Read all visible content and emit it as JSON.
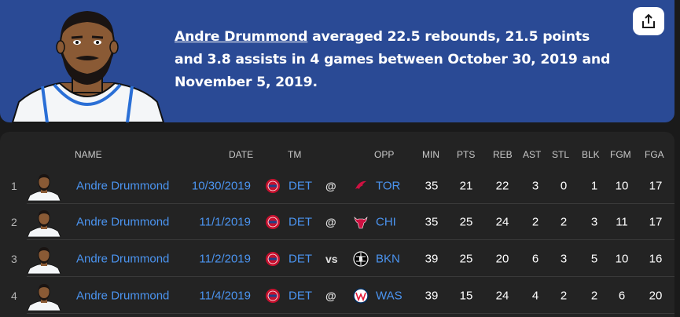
{
  "summary": {
    "player_name": "Andre Drummond",
    "text": " averaged 22.5 rebounds, 21.5 points and 3.8 assists in 4 games between October 30, 2019 and November 5, 2019."
  },
  "icons": {
    "share": "share-icon"
  },
  "table": {
    "headers": {
      "name": "NAME",
      "date": "DATE",
      "tm": "TM",
      "opp": "OPP",
      "min": "MIN",
      "pts": "PTS",
      "reb": "REB",
      "ast": "AST",
      "stl": "STL",
      "blk": "BLK",
      "fgm": "FGM",
      "fga": "FGA"
    },
    "rows": [
      {
        "rank": "1",
        "name": "Andre Drummond",
        "date": "10/30/2019",
        "tm": "DET",
        "loc": "@",
        "opp": "TOR",
        "min": "35",
        "pts": "21",
        "reb": "22",
        "ast": "3",
        "stl": "0",
        "blk": "1",
        "fgm": "10",
        "fga": "17"
      },
      {
        "rank": "2",
        "name": "Andre Drummond",
        "date": "11/1/2019",
        "tm": "DET",
        "loc": "@",
        "opp": "CHI",
        "min": "35",
        "pts": "25",
        "reb": "24",
        "ast": "2",
        "stl": "2",
        "blk": "3",
        "fgm": "11",
        "fga": "17"
      },
      {
        "rank": "3",
        "name": "Andre Drummond",
        "date": "11/2/2019",
        "tm": "DET",
        "loc": "vs",
        "opp": "BKN",
        "min": "39",
        "pts": "25",
        "reb": "20",
        "ast": "6",
        "stl": "3",
        "blk": "5",
        "fgm": "10",
        "fga": "16"
      },
      {
        "rank": "4",
        "name": "Andre Drummond",
        "date": "11/4/2019",
        "tm": "DET",
        "loc": "@",
        "opp": "WAS",
        "min": "39",
        "pts": "15",
        "reb": "24",
        "ast": "4",
        "stl": "2",
        "blk": "2",
        "fgm": "6",
        "fga": "20"
      }
    ]
  },
  "colors": {
    "hero_bg": "#2a4a95",
    "link": "#4b94f0",
    "pistons": "#c8102e",
    "raptors": "#ce1141",
    "bulls": "#ce1141",
    "nets": "#000000",
    "wizards": "#002b5c"
  }
}
